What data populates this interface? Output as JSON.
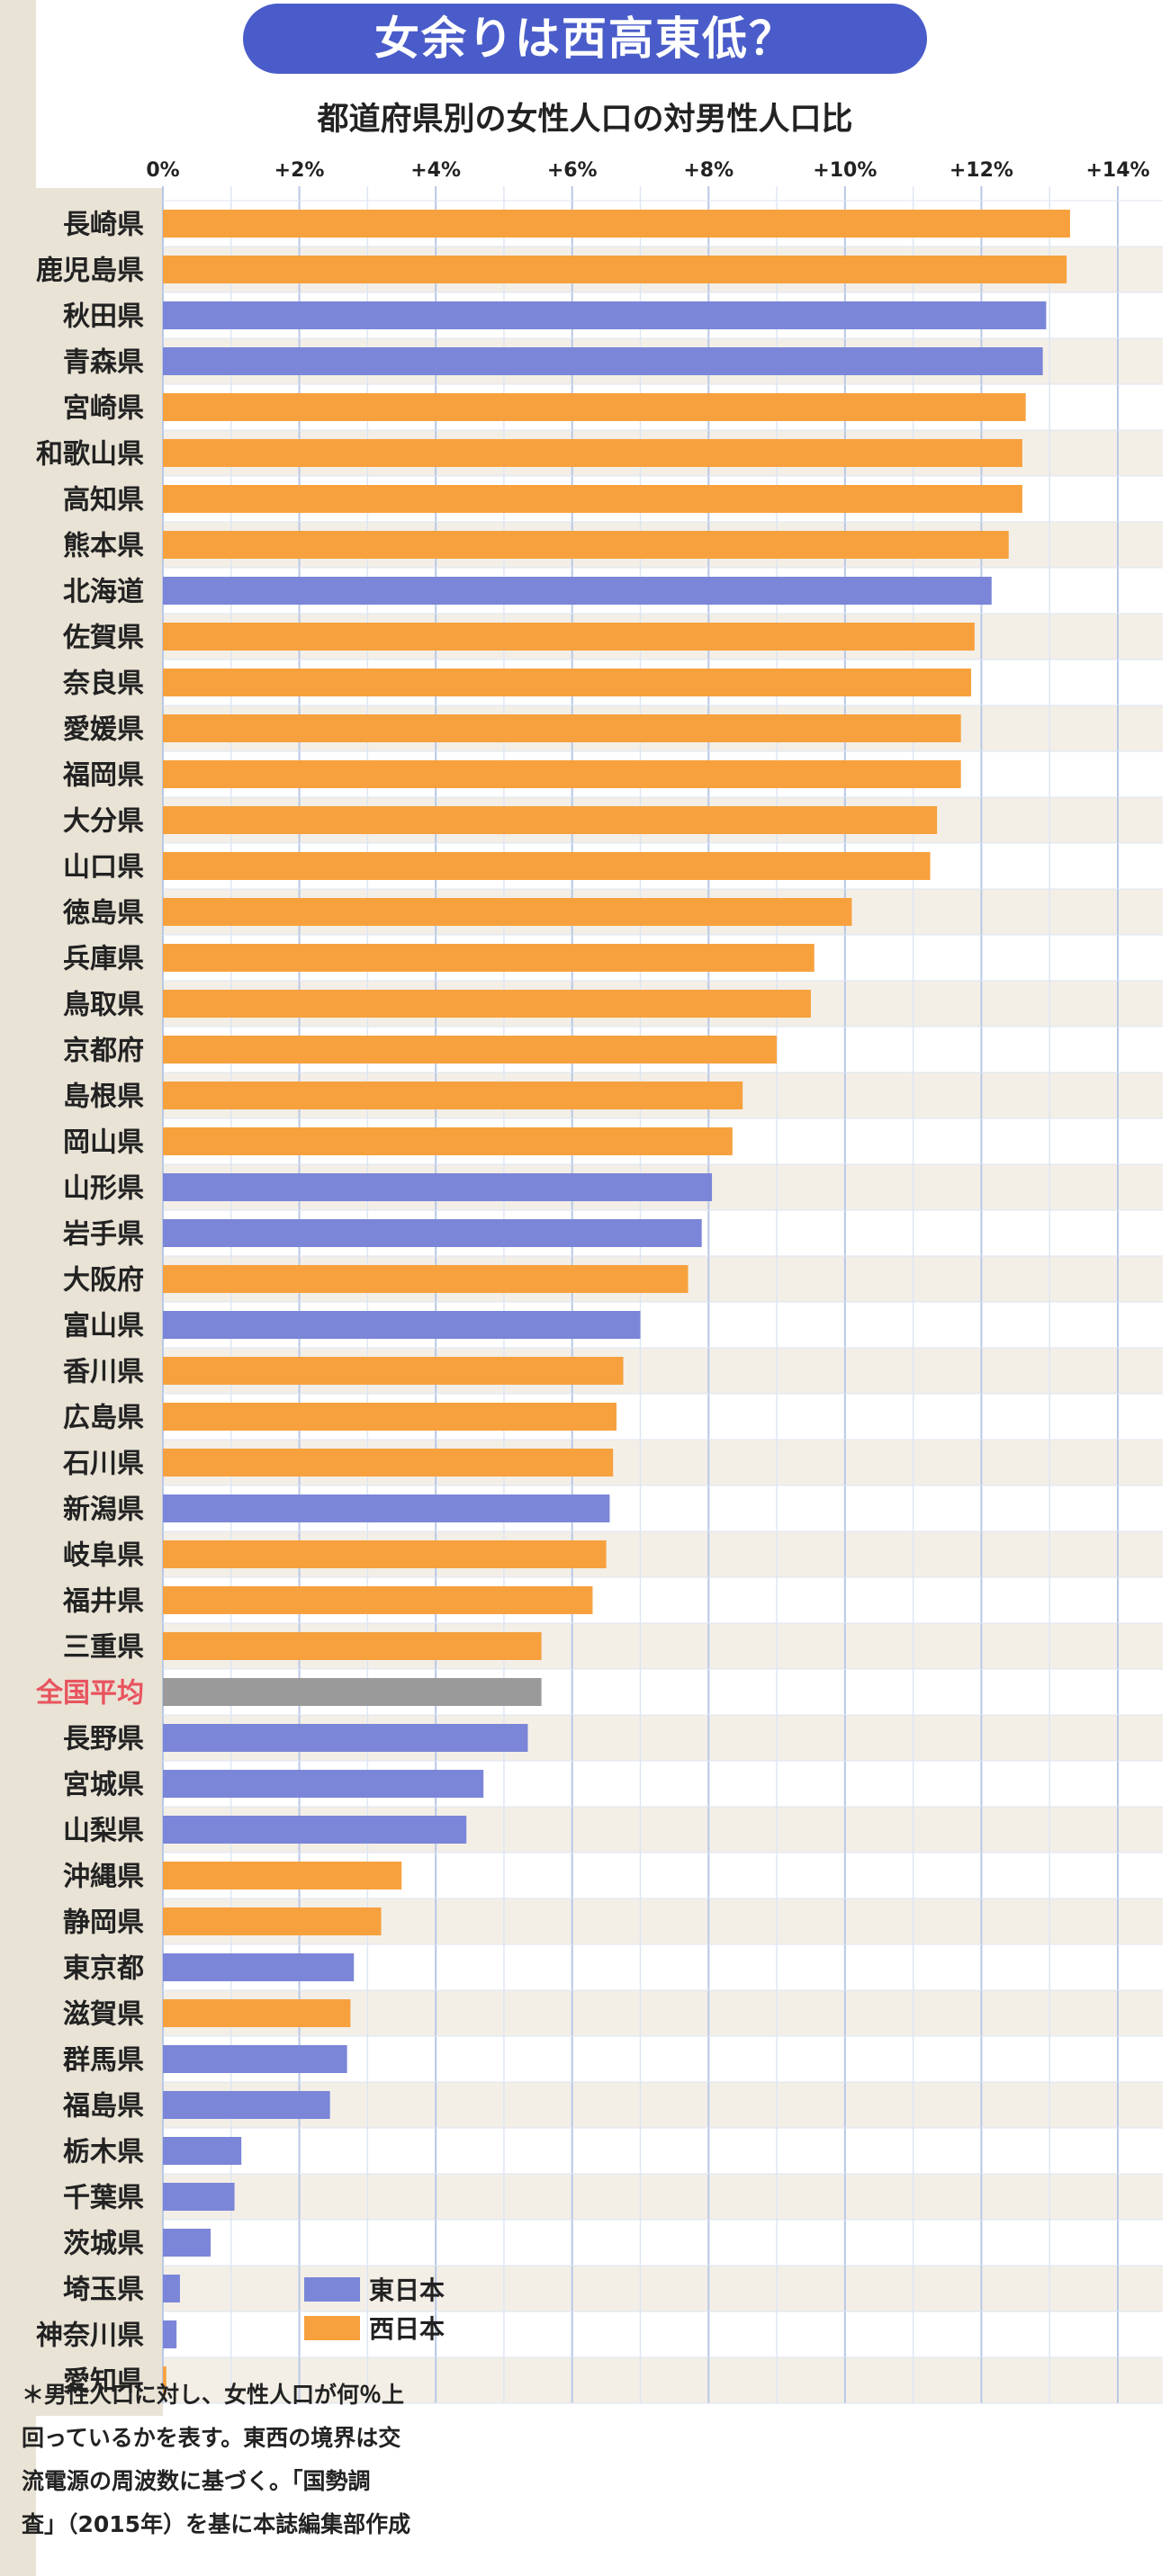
{
  "title": "女余りは西高東低？",
  "chart_data": {
    "type": "bar",
    "orientation": "horizontal",
    "title": "女余りは西高東低？",
    "subtitle": "都道府県別の女性人口の対男性人口比",
    "xlabel": "",
    "ylabel": "",
    "xlim": [
      0,
      14
    ],
    "x_ticks": [
      0,
      2,
      4,
      6,
      8,
      10,
      12,
      14
    ],
    "x_tick_labels": [
      "0%",
      "+2%",
      "+4%",
      "+6%",
      "+8%",
      "+10%",
      "+12%",
      "+14%"
    ],
    "grid": true,
    "legend_position": "bottom-left",
    "colors": {
      "east": "#7b86d8",
      "west": "#f7a13e",
      "average": "#9a9a9a",
      "average_label": "#e8545e"
    },
    "legend": [
      {
        "key": "east",
        "label": "東日本"
      },
      {
        "key": "west",
        "label": "西日本"
      }
    ],
    "categories": [
      "長崎県",
      "鹿児島県",
      "秋田県",
      "青森県",
      "宮崎県",
      "和歌山県",
      "高知県",
      "熊本県",
      "北海道",
      "佐賀県",
      "奈良県",
      "愛媛県",
      "福岡県",
      "大分県",
      "山口県",
      "徳島県",
      "兵庫県",
      "鳥取県",
      "京都府",
      "島根県",
      "岡山県",
      "山形県",
      "岩手県",
      "大阪府",
      "富山県",
      "香川県",
      "広島県",
      "石川県",
      "新潟県",
      "岐阜県",
      "福井県",
      "三重県",
      "全国平均",
      "長野県",
      "宮城県",
      "山梨県",
      "沖縄県",
      "静岡県",
      "東京都",
      "滋賀県",
      "群馬県",
      "福島県",
      "栃木県",
      "千葉県",
      "茨城県",
      "埼玉県",
      "神奈川県",
      "愛知県"
    ],
    "values": [
      13.3,
      13.25,
      12.95,
      12.9,
      12.65,
      12.6,
      12.6,
      12.4,
      12.15,
      11.9,
      11.85,
      11.7,
      11.7,
      11.35,
      11.25,
      10.1,
      9.55,
      9.5,
      9.0,
      8.5,
      8.35,
      8.05,
      7.9,
      7.7,
      7.0,
      6.75,
      6.65,
      6.6,
      6.55,
      6.5,
      6.3,
      5.55,
      5.55,
      5.35,
      4.7,
      4.45,
      3.5,
      3.2,
      2.8,
      2.75,
      2.7,
      2.45,
      1.15,
      1.05,
      0.7,
      0.25,
      0.2,
      0.05
    ],
    "region": [
      "west",
      "west",
      "east",
      "east",
      "west",
      "west",
      "west",
      "west",
      "east",
      "west",
      "west",
      "west",
      "west",
      "west",
      "west",
      "west",
      "west",
      "west",
      "west",
      "west",
      "west",
      "east",
      "east",
      "west",
      "east",
      "west",
      "west",
      "west",
      "east",
      "west",
      "west",
      "west",
      "average",
      "east",
      "east",
      "east",
      "west",
      "west",
      "east",
      "west",
      "east",
      "east",
      "east",
      "east",
      "east",
      "east",
      "east",
      "west"
    ]
  },
  "footnote": "＊男性人口に対し、女性人口が何％上\n回っているかを表す。東西の境界は交\n流電源の周波数に基づく。「国勢調\n査」（2015年）を基に本誌編集部作成"
}
